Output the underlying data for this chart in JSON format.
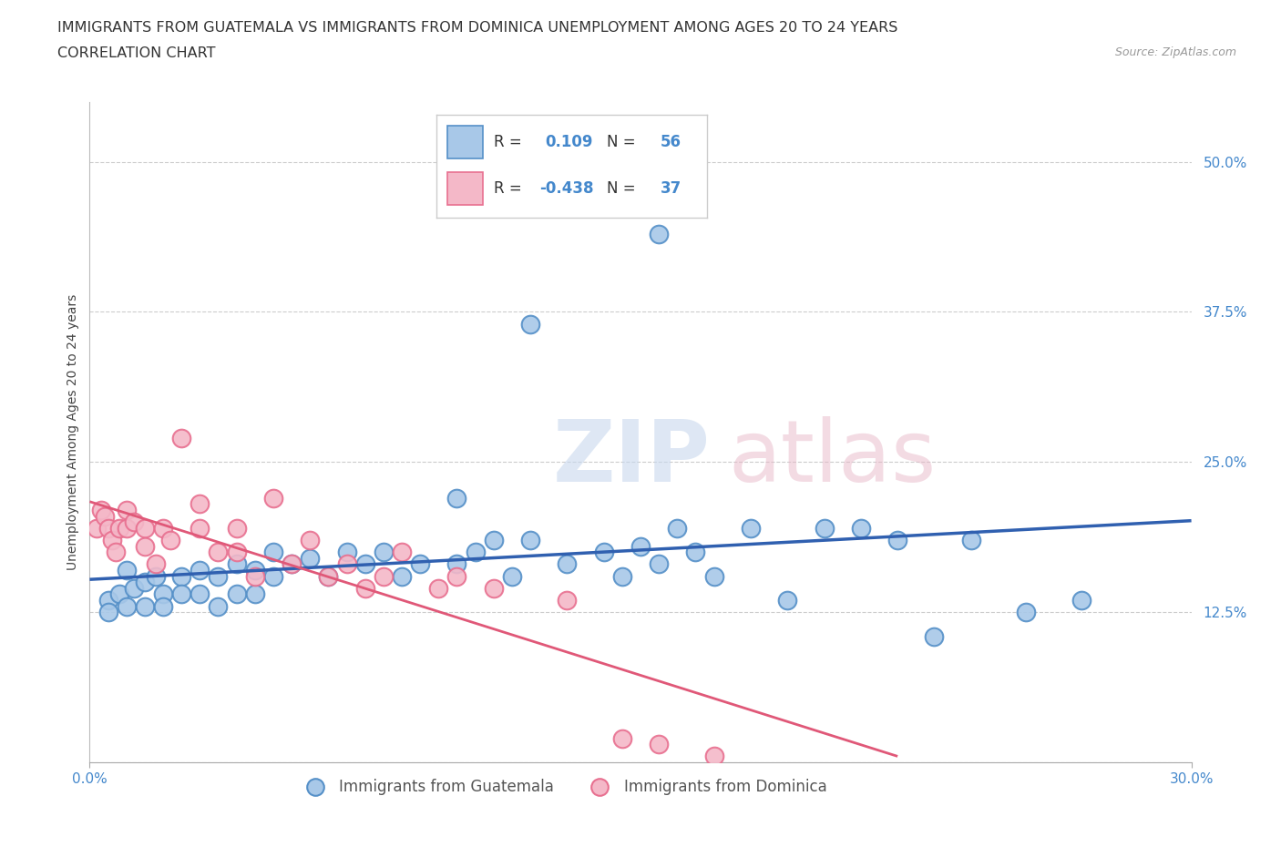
{
  "title_line1": "IMMIGRANTS FROM GUATEMALA VS IMMIGRANTS FROM DOMINICA UNEMPLOYMENT AMONG AGES 20 TO 24 YEARS",
  "title_line2": "CORRELATION CHART",
  "source_text": "Source: ZipAtlas.com",
  "ylabel": "Unemployment Among Ages 20 to 24 years",
  "xlim": [
    0.0,
    0.3
  ],
  "ylim": [
    0.0,
    0.55
  ],
  "yticks": [
    0.0,
    0.125,
    0.25,
    0.375,
    0.5
  ],
  "ytick_labels": [
    "",
    "12.5%",
    "25.0%",
    "37.5%",
    "50.0%"
  ],
  "watermark_zip": "ZIP",
  "watermark_atlas": "atlas",
  "color_guatemala": "#a8c8e8",
  "color_dominica": "#f4b8c8",
  "edge_color_guatemala": "#5590c8",
  "edge_color_dominica": "#e87090",
  "line_color_guatemala": "#3060b0",
  "line_color_dominica": "#e05878",
  "tick_color": "#4488cc",
  "background_color": "#ffffff",
  "grid_color": "#cccccc",
  "title_fontsize": 11.5,
  "axis_label_fontsize": 10,
  "tick_fontsize": 11,
  "guatemala_x": [
    0.005,
    0.005,
    0.008,
    0.01,
    0.01,
    0.012,
    0.015,
    0.015,
    0.018,
    0.02,
    0.02,
    0.025,
    0.025,
    0.03,
    0.03,
    0.035,
    0.035,
    0.04,
    0.04,
    0.045,
    0.045,
    0.05,
    0.05,
    0.055,
    0.06,
    0.065,
    0.07,
    0.075,
    0.08,
    0.085,
    0.09,
    0.1,
    0.1,
    0.105,
    0.11,
    0.115,
    0.12,
    0.13,
    0.14,
    0.145,
    0.15,
    0.155,
    0.16,
    0.165,
    0.17,
    0.18,
    0.19,
    0.2,
    0.21,
    0.22,
    0.23,
    0.24,
    0.255,
    0.27,
    0.155,
    0.12
  ],
  "guatemala_y": [
    0.135,
    0.125,
    0.14,
    0.16,
    0.13,
    0.145,
    0.15,
    0.13,
    0.155,
    0.14,
    0.13,
    0.155,
    0.14,
    0.16,
    0.14,
    0.155,
    0.13,
    0.165,
    0.14,
    0.16,
    0.14,
    0.175,
    0.155,
    0.165,
    0.17,
    0.155,
    0.175,
    0.165,
    0.175,
    0.155,
    0.165,
    0.22,
    0.165,
    0.175,
    0.185,
    0.155,
    0.185,
    0.165,
    0.175,
    0.155,
    0.18,
    0.165,
    0.195,
    0.175,
    0.155,
    0.195,
    0.135,
    0.195,
    0.195,
    0.185,
    0.105,
    0.185,
    0.125,
    0.135,
    0.44,
    0.365
  ],
  "dominica_x": [
    0.002,
    0.003,
    0.004,
    0.005,
    0.006,
    0.007,
    0.008,
    0.01,
    0.01,
    0.012,
    0.015,
    0.015,
    0.018,
    0.02,
    0.022,
    0.025,
    0.03,
    0.03,
    0.035,
    0.04,
    0.04,
    0.045,
    0.05,
    0.055,
    0.06,
    0.065,
    0.07,
    0.075,
    0.08,
    0.085,
    0.095,
    0.1,
    0.11,
    0.13,
    0.145,
    0.155,
    0.17
  ],
  "dominica_y": [
    0.195,
    0.21,
    0.205,
    0.195,
    0.185,
    0.175,
    0.195,
    0.21,
    0.195,
    0.2,
    0.195,
    0.18,
    0.165,
    0.195,
    0.185,
    0.27,
    0.195,
    0.215,
    0.175,
    0.195,
    0.175,
    0.155,
    0.22,
    0.165,
    0.185,
    0.155,
    0.165,
    0.145,
    0.155,
    0.175,
    0.145,
    0.155,
    0.145,
    0.135,
    0.02,
    0.015,
    0.005
  ]
}
